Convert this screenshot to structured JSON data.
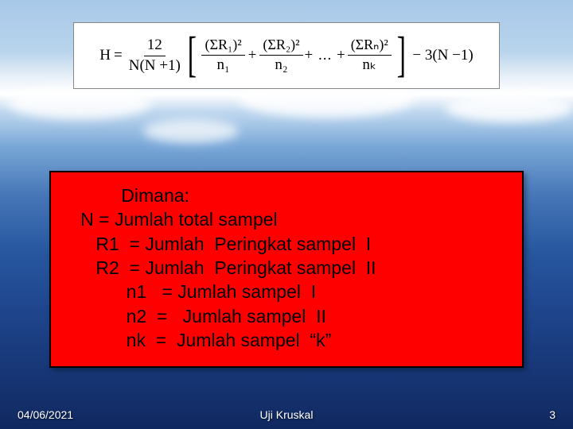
{
  "background": {
    "gradient_stops": [
      "#a8c8e8",
      "#b8d4ec",
      "#e8f0f8",
      "#ffffff",
      "#c0d8ef",
      "#7aa8d8",
      "#4878b8",
      "#2858a0",
      "#204890",
      "#183878",
      "#102860"
    ]
  },
  "formula": {
    "lhs": "H",
    "coeff_num": "12",
    "coeff_den": "N(N +1)",
    "terms": [
      {
        "num": "(ΣR₁)²",
        "den": "n₁"
      },
      {
        "num": "(ΣR₂)²",
        "den": "n₂"
      },
      {
        "num": "(ΣRₙ)²",
        "den": "nₖ"
      }
    ],
    "ellipsis": "+ ... +",
    "trailing": "− 3(N −1)",
    "box_bg": "#ffffff",
    "box_border": "#888888",
    "text_color": "#000000",
    "font_family": "Times New Roman",
    "font_size_pt": 14
  },
  "legend": {
    "box_bg": "#ff0000",
    "box_border": "#000000",
    "text_color": "#000000",
    "font_size_pt": 17,
    "lines": {
      "l1": "           Dimana:",
      "l2": "   N = Jumlah total sampel",
      "l3": "      R1  = Jumlah  Peringkat sampel  I",
      "l4": "      R2  = Jumlah  Peringkat sampel  II",
      "l5": "            n1   = Jumlah sampel  I",
      "l6": "            n2  =   Jumlah sampel  II",
      "l7": "            nk  =  Jumlah sampel  “k”"
    }
  },
  "footer": {
    "date": "04/06/2021",
    "title": "Uji Kruskal",
    "page": "3",
    "color": "#ffffff",
    "font_size_pt": 11
  }
}
